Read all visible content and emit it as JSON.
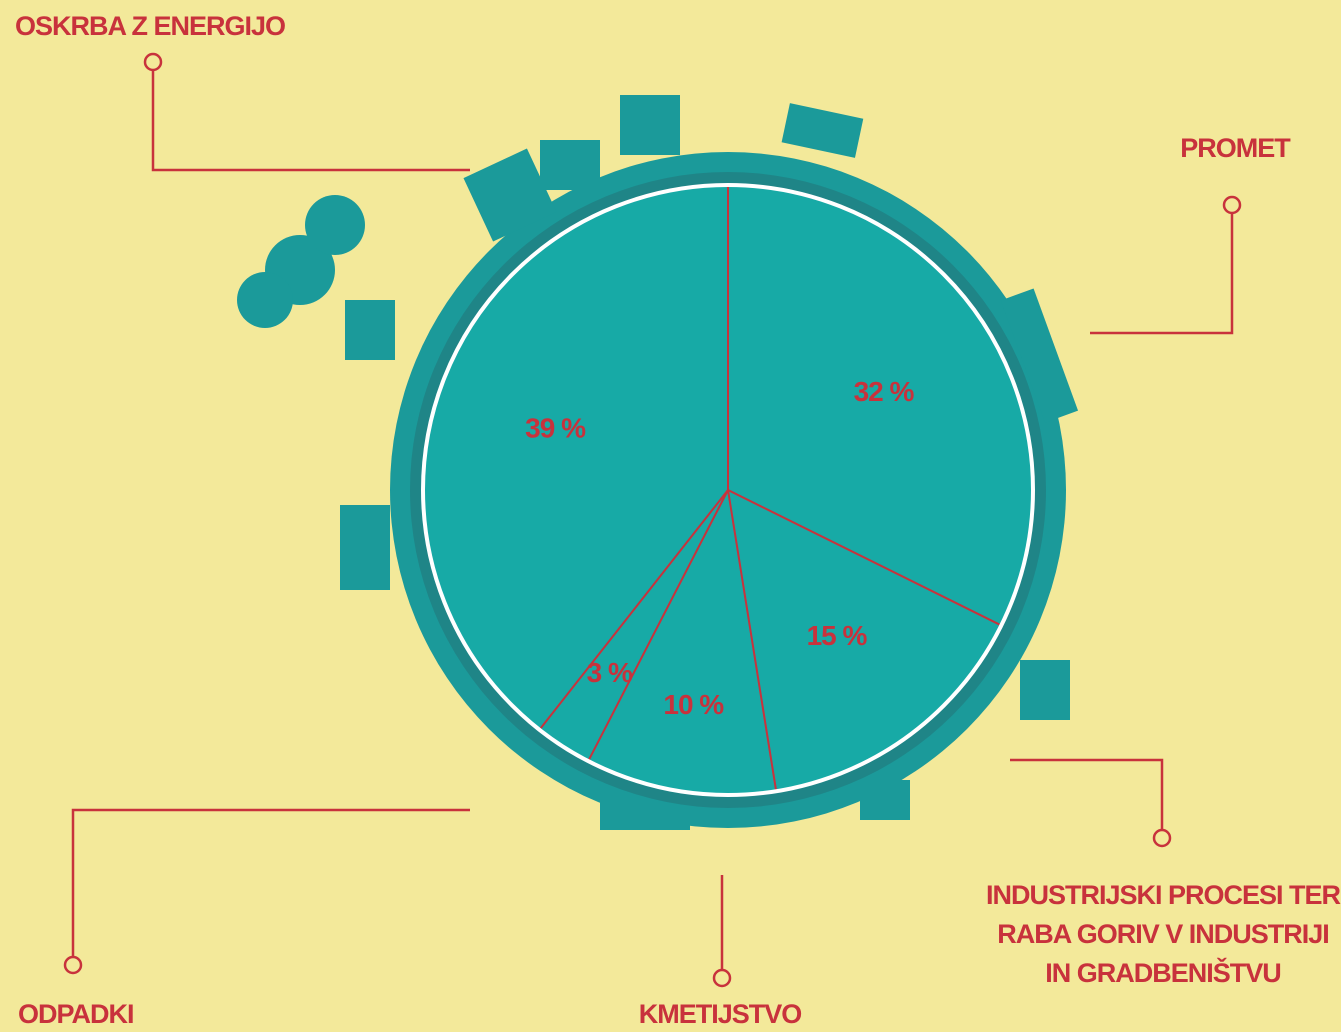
{
  "chart_data": {
    "type": "pie",
    "categories": [
      "PROMET",
      "INDUSTRIJSKI PROCESI TER RABA GORIV V INDUSTRIJI IN GRADBENIŠTVU",
      "KMETIJSTVO",
      "ODPADKI",
      "OSKRBA Z ENERGIJO"
    ],
    "values": [
      32,
      15,
      10,
      3,
      39
    ],
    "value_labels": [
      "32 %",
      "15 %",
      "10 %",
      "3 %",
      "39 %"
    ],
    "color": "#17aaa6"
  }
}
